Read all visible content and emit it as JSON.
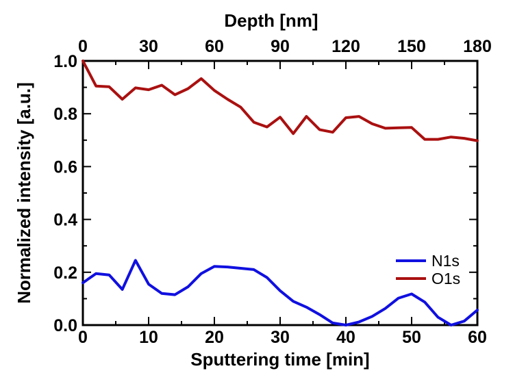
{
  "chart_data": {
    "type": "line",
    "xlabel": "Sputtering time [min]",
    "ylabel": "Normalized intensity [a.u.]",
    "top_xlabel": "Depth [nm]",
    "xlim": [
      0,
      60
    ],
    "ylim": [
      0,
      1.0
    ],
    "top_xlim": [
      0,
      180
    ],
    "x_ticks": [
      "0",
      "10",
      "20",
      "30",
      "40",
      "50",
      "60"
    ],
    "y_ticks": [
      "0.0",
      "0.2",
      "0.4",
      "0.6",
      "0.8",
      "1.0"
    ],
    "top_ticks": [
      "0",
      "30",
      "60",
      "90",
      "120",
      "150",
      "180"
    ],
    "grid": false,
    "legend_position": "lower-right",
    "series": [
      {
        "name": "N1s",
        "color": "#1010e0",
        "x": [
          0,
          2,
          4,
          6,
          8,
          10,
          12,
          14,
          16,
          18,
          20,
          22,
          24,
          26,
          28,
          30,
          32,
          34,
          36,
          38,
          40,
          42,
          44,
          46,
          48,
          50,
          52,
          54,
          56,
          58,
          60
        ],
        "y": [
          0.16,
          0.195,
          0.19,
          0.135,
          0.245,
          0.155,
          0.12,
          0.115,
          0.145,
          0.195,
          0.222,
          0.22,
          0.215,
          0.21,
          0.18,
          0.13,
          0.09,
          0.068,
          0.04,
          0.008,
          0.0,
          0.012,
          0.033,
          0.063,
          0.102,
          0.118,
          0.087,
          0.03,
          0.0,
          0.015,
          0.057
        ]
      },
      {
        "name": "O1s",
        "color": "#aa1010",
        "x": [
          0,
          2,
          4,
          6,
          8,
          10,
          12,
          14,
          16,
          18,
          20,
          22,
          24,
          26,
          28,
          30,
          32,
          34,
          36,
          38,
          40,
          42,
          44,
          46,
          48,
          50,
          52,
          54,
          56,
          58,
          60
        ],
        "y": [
          1.0,
          0.905,
          0.902,
          0.855,
          0.898,
          0.891,
          0.908,
          0.872,
          0.895,
          0.933,
          0.888,
          0.855,
          0.825,
          0.768,
          0.75,
          0.787,
          0.725,
          0.79,
          0.74,
          0.73,
          0.785,
          0.79,
          0.762,
          0.745,
          0.747,
          0.748,
          0.703,
          0.703,
          0.712,
          0.707,
          0.698
        ]
      }
    ]
  }
}
